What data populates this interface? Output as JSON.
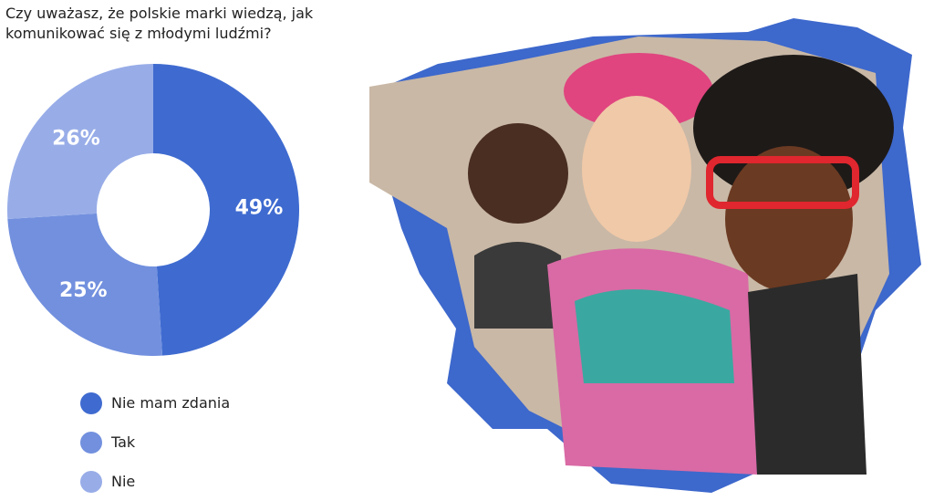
{
  "chart_data": {
    "type": "pie",
    "donut": true,
    "title": "Czy uważasz, że polskie marki wiedzą, jak komunikować się z młodymi ludźmi?",
    "categories": [
      "Nie mam zdania",
      "Tak",
      "Nie"
    ],
    "values": [
      49,
      25,
      26
    ],
    "labels": [
      "49%",
      "25%",
      "26%"
    ],
    "colors": [
      "#3f6bd0",
      "#7290de",
      "#98ade8"
    ],
    "legend": "bottom-left"
  },
  "photo": {
    "description_icon": "photo-three-young-people-on-blue-splash",
    "splash_color": "#3d68cc"
  }
}
